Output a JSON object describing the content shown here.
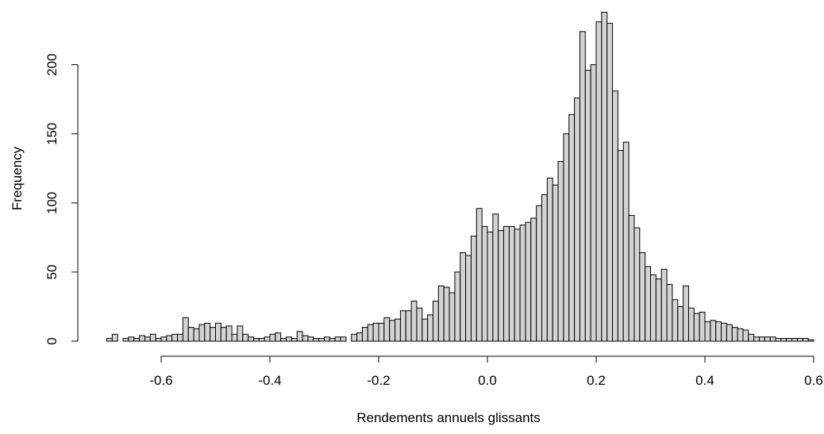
{
  "chart_data": {
    "type": "bar",
    "title": "",
    "xlabel": "Rendements annuels glissants",
    "ylabel": "Frequency",
    "xlim": [
      -0.7,
      0.58
    ],
    "ylim": [
      0,
      240
    ],
    "bin_width": 0.01,
    "x_ticks": [
      -0.6,
      -0.4,
      -0.2,
      0.0,
      0.2,
      0.4,
      0.6
    ],
    "x_tick_labels": [
      "-0.6",
      "-0.4",
      "-0.2",
      "0.0",
      "0.2",
      "0.4",
      "0.6"
    ],
    "y_ticks": [
      0,
      50,
      100,
      150,
      200
    ],
    "y_tick_labels": [
      "0",
      "50",
      "100",
      "150",
      "200"
    ],
    "grid": false,
    "bar_fill": "#d3d3d3",
    "bar_stroke": "#000000",
    "bin_start": -0.7,
    "values": [
      2,
      5,
      0,
      2,
      3,
      2,
      4,
      3,
      5,
      2,
      3,
      4,
      5,
      5,
      17,
      10,
      9,
      12,
      13,
      10,
      13,
      10,
      11,
      5,
      11,
      5,
      3,
      2,
      2,
      3,
      5,
      6,
      2,
      3,
      2,
      7,
      4,
      3,
      2,
      2,
      3,
      2,
      3,
      3,
      0,
      5,
      6,
      10,
      12,
      13,
      13,
      17,
      15,
      16,
      22,
      22,
      29,
      24,
      16,
      19,
      29,
      40,
      39,
      35,
      50,
      64,
      62,
      76,
      96,
      83,
      79,
      92,
      80,
      83,
      83,
      81,
      84,
      86,
      89,
      98,
      106,
      118,
      113,
      130,
      150,
      164,
      176,
      224,
      196,
      200,
      231,
      238,
      230,
      181,
      138,
      144,
      91,
      82,
      64,
      54,
      48,
      45,
      52,
      41,
      30,
      25,
      40,
      24,
      20,
      21,
      14,
      15,
      14,
      13,
      12,
      10,
      9,
      8,
      5,
      3,
      3,
      3,
      3,
      2,
      2,
      2,
      2,
      2,
      2,
      1
    ]
  }
}
